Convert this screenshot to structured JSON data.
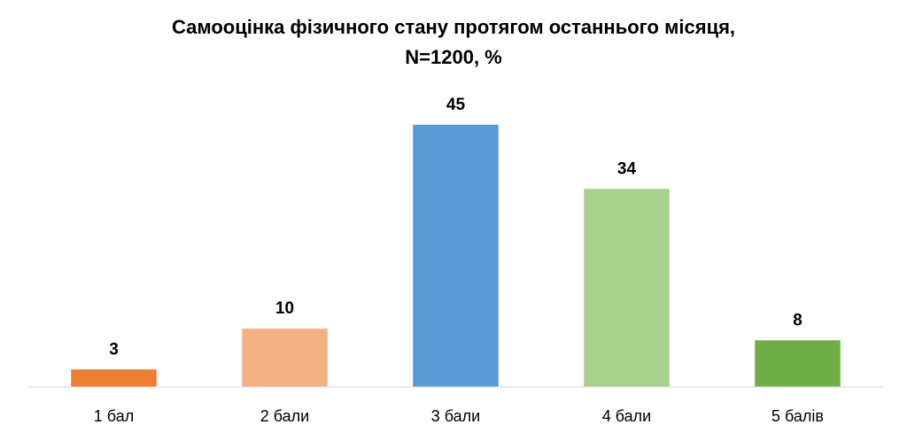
{
  "chart_data": {
    "type": "bar",
    "title": "Самооцінка фізичного стану протягом останнього місяця,",
    "subtitle": "N=1200, %",
    "categories": [
      "1 бал",
      "2 бали",
      "3 бали",
      "4 бали",
      "5 балів"
    ],
    "values": [
      3,
      10,
      45,
      34,
      8
    ],
    "colors": [
      "#ed7d31",
      "#f4b183",
      "#5b9bd5",
      "#a9d18e",
      "#70ad47"
    ],
    "ylim": [
      0,
      50
    ]
  }
}
